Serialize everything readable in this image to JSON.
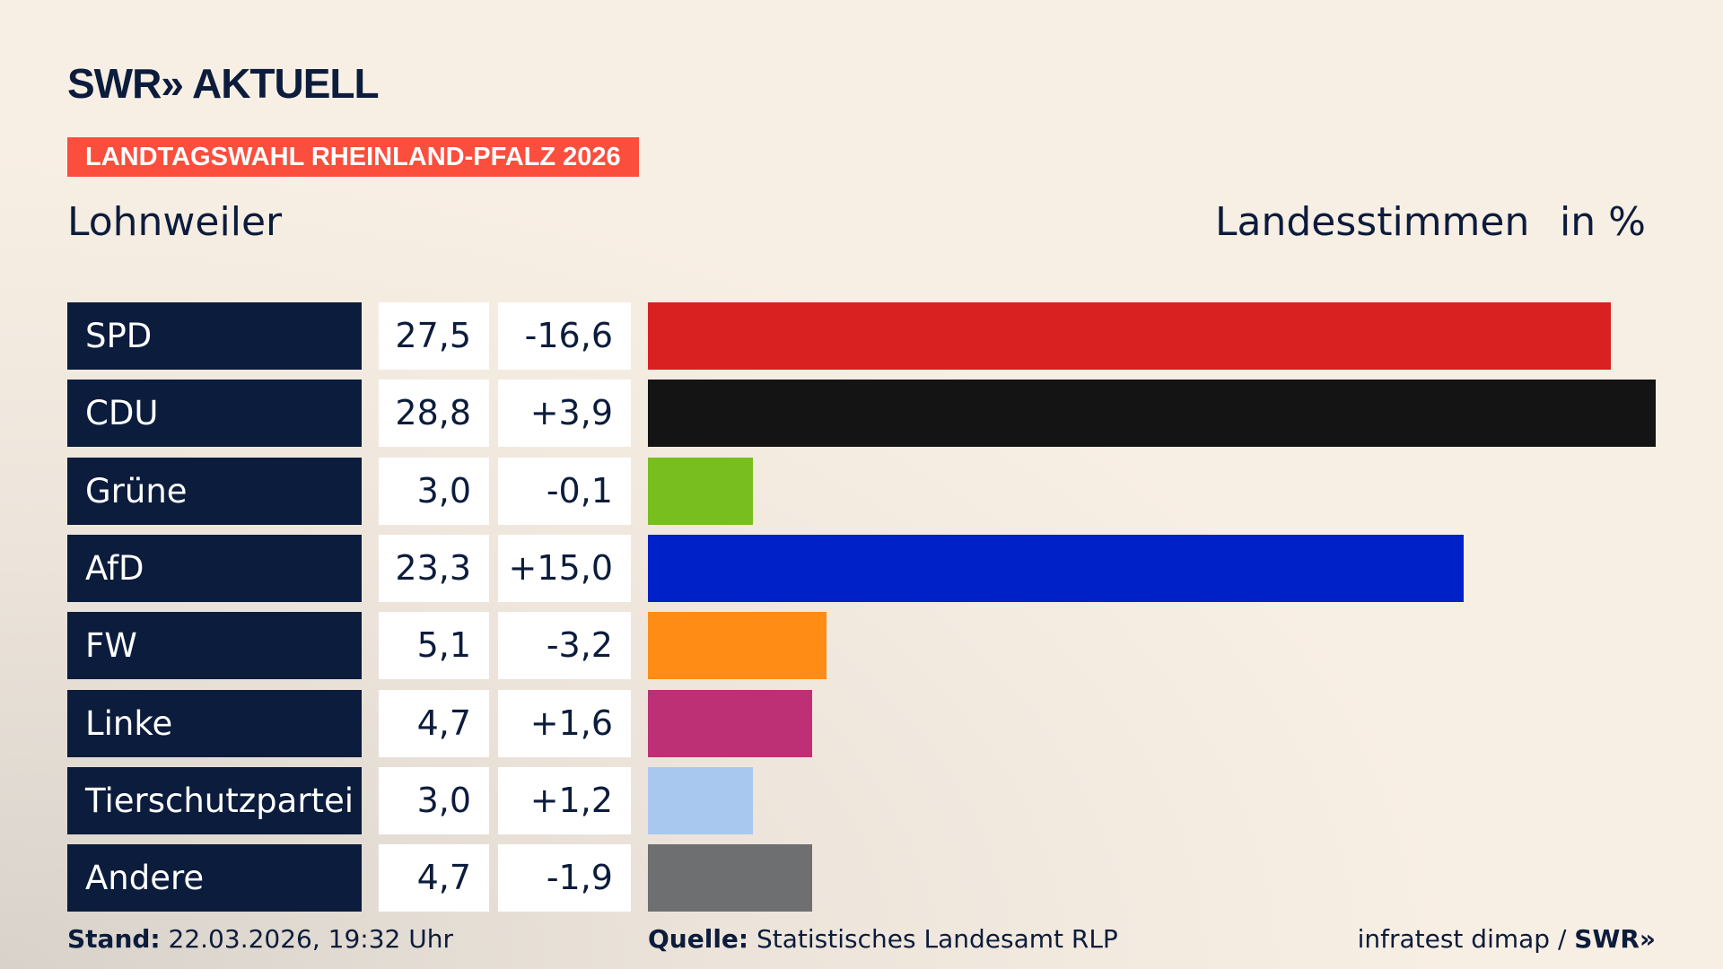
{
  "header": {
    "logo": "SWR» AKTUELL",
    "badge": "LANDTAGSWAHL RHEINLAND-PFALZ 2026",
    "place": "Lohnweiler",
    "vote_type": "Landesstimmen",
    "unit": "in %"
  },
  "chart_data": {
    "type": "bar",
    "orientation": "horizontal",
    "categories": [
      "SPD",
      "CDU",
      "Grüne",
      "AfD",
      "FW",
      "Linke",
      "Tierschutzpartei",
      "Andere"
    ],
    "values": [
      27.5,
      28.8,
      3.0,
      23.3,
      5.1,
      4.7,
      3.0,
      4.7
    ],
    "values_label": [
      "27,5",
      "28,8",
      "3,0",
      "23,3",
      "5,1",
      "4,7",
      "3,0",
      "4,7"
    ],
    "changes": [
      "-16,6",
      "+3,9",
      "-0,1",
      "+15,0",
      "-3,2",
      "+1,6",
      "+1,2",
      "-1,9"
    ],
    "colors": [
      "#d92121",
      "#141414",
      "#78be1e",
      "#0021c8",
      "#ff8c14",
      "#be3075",
      "#a9c8ef",
      "#6e6f71"
    ]
  },
  "footer": {
    "stand_label": "Stand:",
    "stand_value": "22.03.2026, 19:32 Uhr",
    "quelle_label": "Quelle:",
    "quelle_value": "Statistisches Landesamt RLP",
    "credit": "infratest dimap / ",
    "credit_logo": "SWR»"
  }
}
